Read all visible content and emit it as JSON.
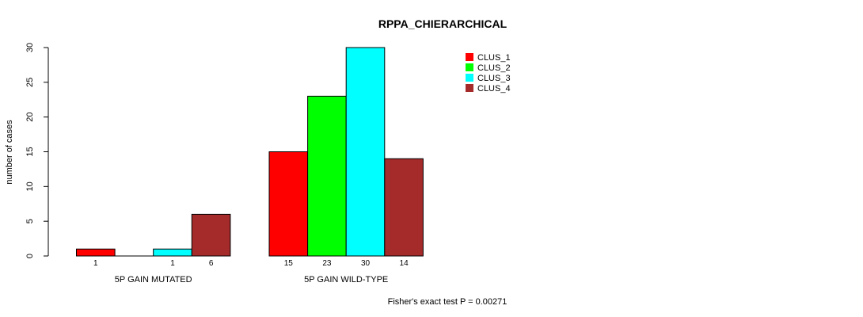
{
  "chart_data": {
    "type": "bar",
    "title": "RPPA_CHIERARCHICAL",
    "xlabel": "",
    "ylabel": "number of cases",
    "ylim": [
      0,
      30
    ],
    "yticks": [
      0,
      5,
      10,
      15,
      20,
      25,
      30
    ],
    "categories": [
      "5P GAIN MUTATED",
      "5P GAIN WILD-TYPE"
    ],
    "series": [
      {
        "name": "CLUS_1",
        "color": "#ff0000",
        "values": [
          1,
          15
        ]
      },
      {
        "name": "CLUS_2",
        "color": "#00ff00",
        "values": [
          0,
          23
        ]
      },
      {
        "name": "CLUS_3",
        "color": "#00ffff",
        "values": [
          1,
          30
        ]
      },
      {
        "name": "CLUS_4",
        "color": "#a52a2a",
        "values": [
          6,
          14
        ]
      }
    ],
    "bar_labels": [
      [
        "1",
        "",
        "1",
        "6"
      ],
      [
        "15",
        "23",
        "30",
        "14"
      ]
    ],
    "legend_position": "top-right",
    "footnote": "Fisher's exact test P = 0.00271"
  }
}
